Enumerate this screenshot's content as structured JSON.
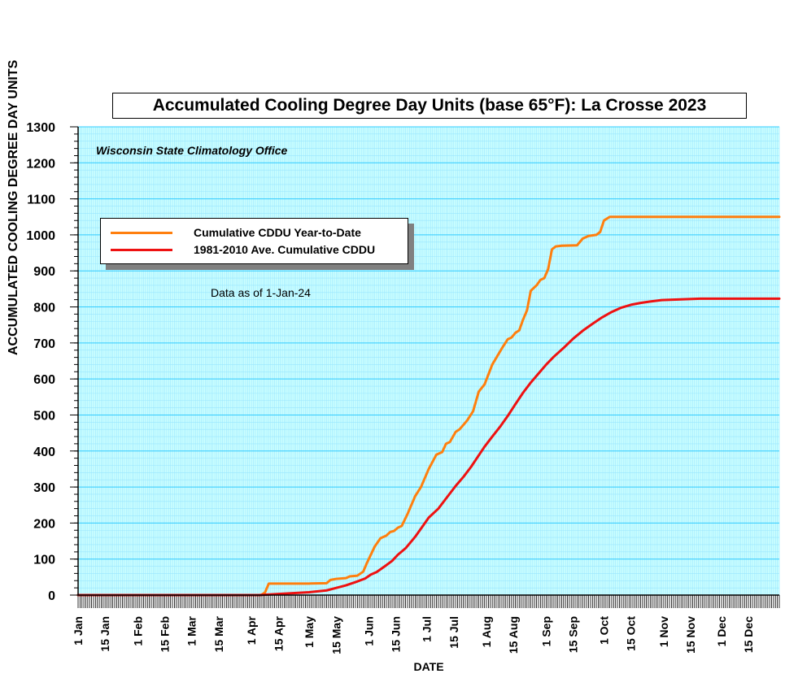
{
  "chart_data": {
    "type": "line",
    "title": "Accumulated Cooling Degree Day Units (base 65°F): La Crosse 2023",
    "subtitle": "Wisconsin State Climatology Office",
    "annotation": "Data as of 1-Jan-24",
    "xlabel": "DATE",
    "ylabel": "ACCUMULATED COOLING DEGREE DAY UNITS",
    "ylim": [
      0,
      1300
    ],
    "y_ticks": [
      "0",
      "100",
      "200",
      "300",
      "400",
      "500",
      "600",
      "700",
      "800",
      "900",
      "1000",
      "1100",
      "1200",
      "1300"
    ],
    "x_tick_labels": [
      {
        "label": "1 Jan",
        "day": 1
      },
      {
        "label": "15 Jan",
        "day": 15
      },
      {
        "label": "1 Feb",
        "day": 32
      },
      {
        "label": "15 Feb",
        "day": 46
      },
      {
        "label": "1 Mar",
        "day": 60
      },
      {
        "label": "15 Mar",
        "day": 74
      },
      {
        "label": "1 Apr",
        "day": 91
      },
      {
        "label": "15 Apr",
        "day": 105
      },
      {
        "label": "1 May",
        "day": 121
      },
      {
        "label": "15 May",
        "day": 135
      },
      {
        "label": "1 Jun",
        "day": 152
      },
      {
        "label": "15 Jun",
        "day": 166
      },
      {
        "label": "1 Jul",
        "day": 182
      },
      {
        "label": "15 Jul",
        "day": 196
      },
      {
        "label": "1 Aug",
        "day": 213
      },
      {
        "label": "15 Aug",
        "day": 227
      },
      {
        "label": "1 Sep",
        "day": 244
      },
      {
        "label": "15 Sep",
        "day": 258
      },
      {
        "label": "1 Oct",
        "day": 274
      },
      {
        "label": "15 Oct",
        "day": 288
      },
      {
        "label": "1 Nov",
        "day": 305
      },
      {
        "label": "15 Nov",
        "day": 319
      },
      {
        "label": "1 Dec",
        "day": 335
      },
      {
        "label": "15 Dec",
        "day": 349
      }
    ],
    "xlim": [
      "1 Jan",
      "31 Dec"
    ],
    "grid": true,
    "background_color": "#ccffff",
    "grid_color": "#33ccff",
    "minor_grid_color": "#99e6ff",
    "legend_position": "upper-left",
    "series": [
      {
        "name": "Cumulative CDDU Year-to-Date",
        "color": "#ff7f0e",
        "points": [
          [
            "1 Jan",
            0
          ],
          [
            "6 Apr",
            0
          ],
          [
            "8 Apr",
            7
          ],
          [
            "10 Apr",
            32
          ],
          [
            "15 Apr",
            32
          ],
          [
            "1 May",
            32
          ],
          [
            "10 May",
            33
          ],
          [
            "12 May",
            42
          ],
          [
            "15 May",
            45
          ],
          [
            "20 May",
            47
          ],
          [
            "22 May",
            52
          ],
          [
            "26 May",
            54
          ],
          [
            "29 May",
            65
          ],
          [
            "31 May",
            90
          ],
          [
            "4 Jun",
            135
          ],
          [
            "7 Jun",
            158
          ],
          [
            "10 Jun",
            165
          ],
          [
            "12 Jun",
            175
          ],
          [
            "14 Jun",
            178
          ],
          [
            "16 Jun",
            187
          ],
          [
            "18 Jun",
            192
          ],
          [
            "21 Jun",
            225
          ],
          [
            "25 Jun",
            275
          ],
          [
            "28 Jun",
            300
          ],
          [
            "2 Jul",
            350
          ],
          [
            "6 Jul",
            390
          ],
          [
            "9 Jul",
            397
          ],
          [
            "11 Jul",
            420
          ],
          [
            "13 Jul",
            425
          ],
          [
            "16 Jul",
            453
          ],
          [
            "18 Jul",
            460
          ],
          [
            "22 Jul",
            485
          ],
          [
            "25 Jul",
            510
          ],
          [
            "28 Jul",
            565
          ],
          [
            "31 Jul",
            585
          ],
          [
            "4 Aug",
            640
          ],
          [
            "9 Aug",
            685
          ],
          [
            "12 Aug",
            710
          ],
          [
            "14 Aug",
            715
          ],
          [
            "16 Aug",
            728
          ],
          [
            "18 Aug",
            735
          ],
          [
            "20 Aug",
            765
          ],
          [
            "22 Aug",
            790
          ],
          [
            "24 Aug",
            845
          ],
          [
            "27 Aug",
            860
          ],
          [
            "29 Aug",
            875
          ],
          [
            "31 Aug",
            880
          ],
          [
            "2 Sep",
            905
          ],
          [
            "4 Sep",
            960
          ],
          [
            "6 Sep",
            968
          ],
          [
            "9 Sep",
            970
          ],
          [
            "17 Sep",
            971
          ],
          [
            "20 Sep",
            990
          ],
          [
            "23 Sep",
            997
          ],
          [
            "27 Sep",
            1000
          ],
          [
            "29 Sep",
            1008
          ],
          [
            "1 Oct",
            1040
          ],
          [
            "4 Oct",
            1050
          ],
          [
            "31 Dec",
            1050
          ]
        ]
      },
      {
        "name": "1981-2010 Ave. Cumulative CDDU",
        "color": "#ee1111",
        "points": [
          [
            "1 Jan",
            0
          ],
          [
            "5 Apr",
            0
          ],
          [
            "15 Apr",
            3
          ],
          [
            "1 May",
            8
          ],
          [
            "10 May",
            13
          ],
          [
            "15 May",
            20
          ],
          [
            "20 May",
            27
          ],
          [
            "25 May",
            36
          ],
          [
            "30 May",
            46
          ],
          [
            "2 Jun",
            57
          ],
          [
            "5 Jun",
            64
          ],
          [
            "10 Jun",
            83
          ],
          [
            "13 Jun",
            95
          ],
          [
            "16 Jun",
            112
          ],
          [
            "20 Jun",
            130
          ],
          [
            "25 Jun",
            162
          ],
          [
            "29 Jun",
            192
          ],
          [
            "2 Jul",
            215
          ],
          [
            "7 Jul",
            240
          ],
          [
            "12 Jul",
            275
          ],
          [
            "16 Jul",
            303
          ],
          [
            "20 Jul",
            328
          ],
          [
            "24 Jul",
            356
          ],
          [
            "28 Jul",
            388
          ],
          [
            "31 Jul",
            412
          ],
          [
            "4 Aug",
            440
          ],
          [
            "8 Aug",
            467
          ],
          [
            "12 Aug",
            497
          ],
          [
            "16 Aug",
            530
          ],
          [
            "20 Aug",
            562
          ],
          [
            "24 Aug",
            590
          ],
          [
            "28 Aug",
            615
          ],
          [
            "1 Sep",
            640
          ],
          [
            "5 Sep",
            662
          ],
          [
            "10 Sep",
            686
          ],
          [
            "15 Sep",
            712
          ],
          [
            "20 Sep",
            734
          ],
          [
            "25 Sep",
            753
          ],
          [
            "30 Sep",
            771
          ],
          [
            "5 Oct",
            786
          ],
          [
            "10 Oct",
            798
          ],
          [
            "15 Oct",
            806
          ],
          [
            "20 Oct",
            811
          ],
          [
            "25 Oct",
            815
          ],
          [
            "31 Oct",
            819
          ],
          [
            "10 Nov",
            821
          ],
          [
            "20 Nov",
            823
          ],
          [
            "31 Dec",
            823
          ]
        ]
      }
    ]
  }
}
